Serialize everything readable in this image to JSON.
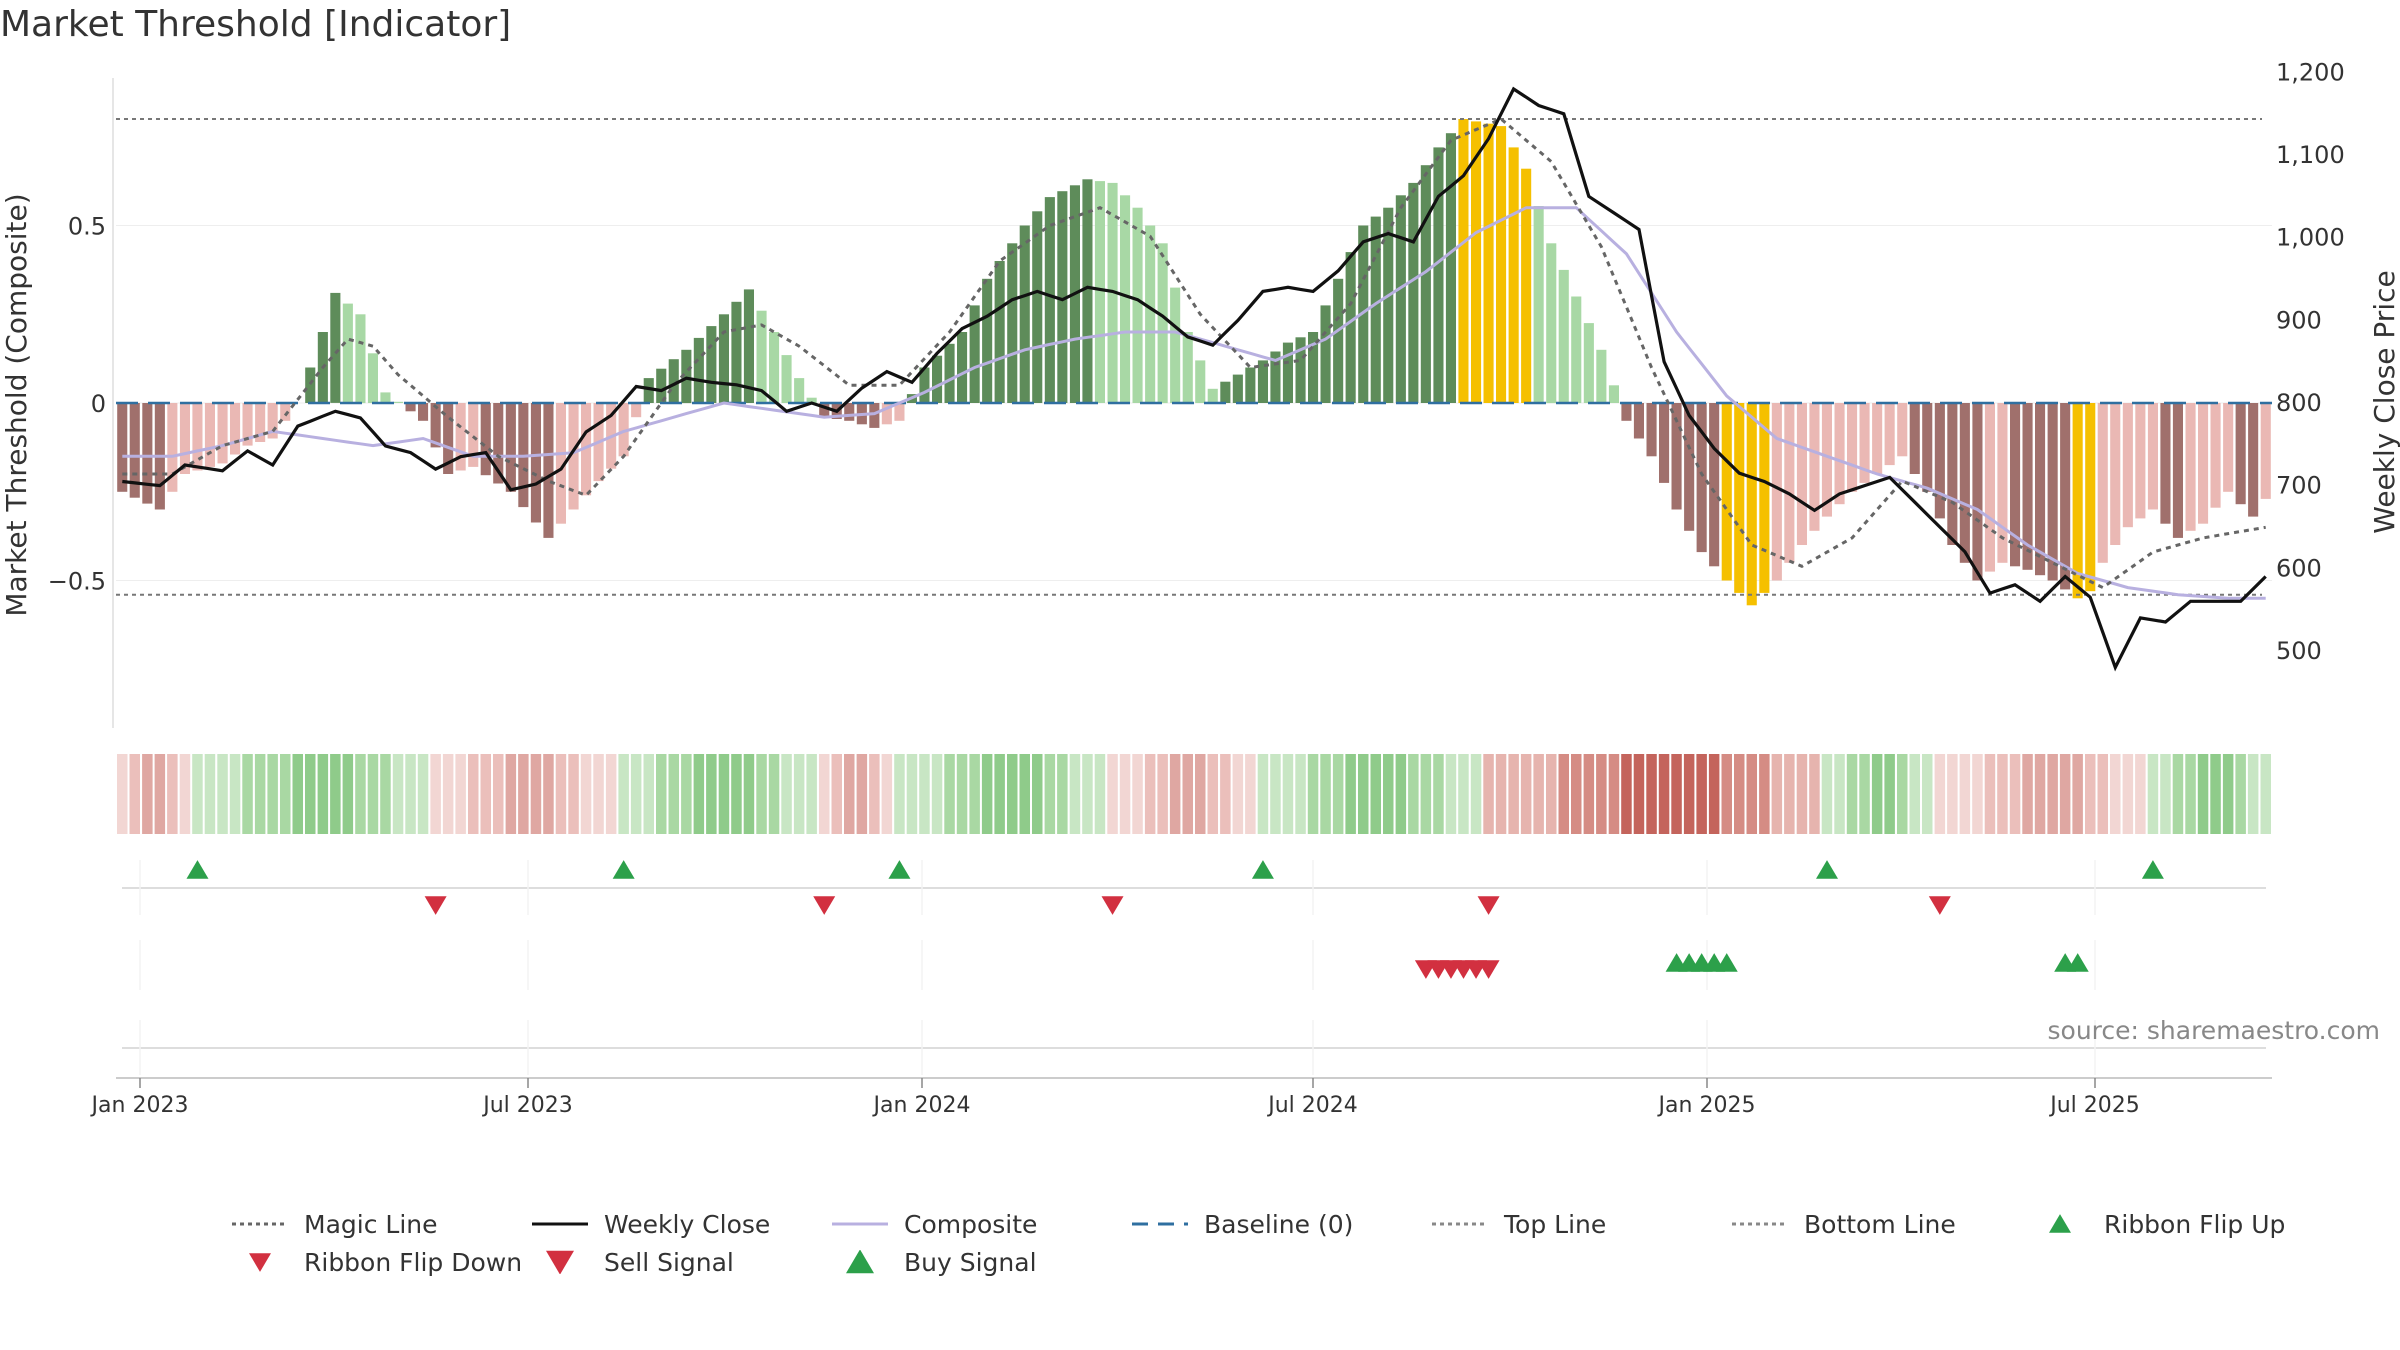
{
  "title": "Market Threshold [Indicator]",
  "source": "source: sharemaestro.com",
  "colors": {
    "dark_green": "#5e8c5a",
    "light_green": "#a8d8a5",
    "dark_red": "#a0706c",
    "light_red": "#eab8b4",
    "gold": "#f5c000",
    "composite": "#b8b0e0",
    "baseline": "#2f6fa0",
    "buy": "#2ca04a",
    "sell": "#d23040"
  },
  "chart_data": {
    "type": "bar",
    "title": "Market Threshold [Indicator]",
    "ylabel_left": "Market Threshold (Composite)",
    "ylabel_right": "Weekly Close Price",
    "left_ticks": [
      "0.5",
      "0",
      "−0.5"
    ],
    "right_ticks": [
      "1,200",
      "1,100",
      "1,000",
      "900",
      "800",
      "700",
      "600",
      "500"
    ],
    "x_ticks": [
      "Jan 2023",
      "Jul 2023",
      "Jan 2024",
      "Jul 2024",
      "Jan 2025",
      "Jul 2025"
    ],
    "ylim_left": [
      -0.9,
      0.92
    ],
    "ylim_right": [
      450,
      1225
    ],
    "top_line": 0.8,
    "bottom_line": -0.54,
    "series": [
      {
        "name": "Magic Line",
        "type": "line",
        "style": "dotted"
      },
      {
        "name": "Weekly Close",
        "type": "line",
        "style": "solid"
      },
      {
        "name": "Composite",
        "type": "line",
        "style": "solid"
      },
      {
        "name": "Baseline (0)",
        "type": "line",
        "style": "dashed"
      },
      {
        "name": "Top Line",
        "type": "line",
        "style": "dotted"
      },
      {
        "name": "Bottom Line",
        "type": "line",
        "style": "dotted"
      },
      {
        "name": "Ribbon Flip Up",
        "type": "marker"
      },
      {
        "name": "Ribbon Flip Down",
        "type": "marker"
      },
      {
        "name": "Sell Signal",
        "type": "marker"
      },
      {
        "name": "Buy Signal",
        "type": "marker"
      }
    ],
    "keypoints": [
      [
        0,
        -0.25
      ],
      [
        3,
        -0.3
      ],
      [
        5,
        -0.2
      ],
      [
        8,
        -0.17
      ],
      [
        10,
        -0.12
      ],
      [
        12,
        -0.1
      ],
      [
        14,
        0
      ],
      [
        16,
        0.2
      ],
      [
        17,
        0.31
      ],
      [
        19,
        0.25
      ],
      [
        21,
        0.03
      ],
      [
        24,
        -0.05
      ],
      [
        26,
        -0.2
      ],
      [
        28,
        -0.18
      ],
      [
        31,
        -0.25
      ],
      [
        34,
        -0.38
      ],
      [
        36,
        -0.3
      ],
      [
        38,
        -0.22
      ],
      [
        40,
        -0.15
      ],
      [
        42,
        0.07
      ],
      [
        45,
        0.15
      ],
      [
        48,
        0.25
      ],
      [
        50,
        0.32
      ],
      [
        52,
        0.2
      ],
      [
        54,
        0.07
      ],
      [
        56,
        -0.04
      ],
      [
        58,
        -0.05
      ],
      [
        60,
        -0.07
      ],
      [
        62,
        -0.05
      ],
      [
        64,
        0.1
      ],
      [
        67,
        0.2
      ],
      [
        69,
        0.35
      ],
      [
        72,
        0.5
      ],
      [
        74,
        0.58
      ],
      [
        77,
        0.63
      ],
      [
        79,
        0.62
      ],
      [
        81,
        0.55
      ],
      [
        83,
        0.45
      ],
      [
        85,
        0.2
      ],
      [
        87,
        0.04
      ],
      [
        89,
        0.08
      ],
      [
        91,
        0.12
      ],
      [
        93,
        0.17
      ],
      [
        95,
        0.2
      ],
      [
        97,
        0.35
      ],
      [
        99,
        0.5
      ],
      [
        101,
        0.55
      ],
      [
        103,
        0.62
      ],
      [
        105,
        0.72
      ],
      [
        107,
        0.8
      ],
      [
        110,
        0.78
      ],
      [
        112,
        0.66
      ],
      [
        114,
        0.45
      ],
      [
        116,
        0.3
      ],
      [
        118,
        0.15
      ],
      [
        120,
        -0.05
      ],
      [
        122,
        -0.15
      ],
      [
        124,
        -0.3
      ],
      [
        126,
        -0.42
      ],
      [
        128,
        -0.5
      ],
      [
        130,
        -0.57
      ],
      [
        132,
        -0.5
      ],
      [
        134,
        -0.4
      ],
      [
        136,
        -0.32
      ],
      [
        138,
        -0.25
      ],
      [
        140,
        -0.2
      ],
      [
        142,
        -0.15
      ],
      [
        144,
        -0.25
      ],
      [
        146,
        -0.4
      ],
      [
        148,
        -0.5
      ],
      [
        150,
        -0.45
      ],
      [
        152,
        -0.47
      ],
      [
        154,
        -0.5
      ],
      [
        156,
        -0.55
      ],
      [
        157,
        -0.53
      ],
      [
        158,
        -0.45
      ],
      [
        160,
        -0.35
      ],
      [
        162,
        -0.3
      ],
      [
        164,
        -0.38
      ],
      [
        166,
        -0.34
      ],
      [
        168,
        -0.25
      ],
      [
        170,
        -0.32
      ],
      [
        171,
        -0.27
      ]
    ],
    "gold_ranges": [
      [
        107,
        112
      ],
      [
        128,
        131
      ],
      [
        156,
        157
      ]
    ],
    "weekly_close_keypoints": [
      [
        0,
        705
      ],
      [
        3,
        700
      ],
      [
        5,
        725
      ],
      [
        8,
        718
      ],
      [
        10,
        742
      ],
      [
        12,
        725
      ],
      [
        14,
        772
      ],
      [
        17,
        790
      ],
      [
        19,
        782
      ],
      [
        21,
        748
      ],
      [
        23,
        740
      ],
      [
        25,
        720
      ],
      [
        27,
        735
      ],
      [
        29,
        740
      ],
      [
        31,
        695
      ],
      [
        33,
        702
      ],
      [
        35,
        720
      ],
      [
        37,
        765
      ],
      [
        39,
        785
      ],
      [
        41,
        820
      ],
      [
        43,
        815
      ],
      [
        45,
        830
      ],
      [
        47,
        825
      ],
      [
        49,
        822
      ],
      [
        51,
        815
      ],
      [
        53,
        790
      ],
      [
        55,
        800
      ],
      [
        57,
        790
      ],
      [
        59,
        818
      ],
      [
        61,
        838
      ],
      [
        63,
        825
      ],
      [
        65,
        860
      ],
      [
        67,
        890
      ],
      [
        69,
        905
      ],
      [
        71,
        925
      ],
      [
        73,
        935
      ],
      [
        75,
        925
      ],
      [
        77,
        940
      ],
      [
        79,
        935
      ],
      [
        81,
        925
      ],
      [
        83,
        905
      ],
      [
        85,
        880
      ],
      [
        87,
        870
      ],
      [
        89,
        900
      ],
      [
        91,
        935
      ],
      [
        93,
        940
      ],
      [
        95,
        935
      ],
      [
        97,
        960
      ],
      [
        99,
        995
      ],
      [
        101,
        1005
      ],
      [
        103,
        995
      ],
      [
        105,
        1050
      ],
      [
        107,
        1075
      ],
      [
        109,
        1120
      ],
      [
        111,
        1180
      ],
      [
        113,
        1160
      ],
      [
        115,
        1150
      ],
      [
        117,
        1050
      ],
      [
        119,
        1030
      ],
      [
        121,
        1010
      ],
      [
        123,
        850
      ],
      [
        125,
        785
      ],
      [
        127,
        745
      ],
      [
        129,
        715
      ],
      [
        131,
        705
      ],
      [
        133,
        690
      ],
      [
        135,
        670
      ],
      [
        137,
        690
      ],
      [
        139,
        700
      ],
      [
        141,
        710
      ],
      [
        143,
        680
      ],
      [
        145,
        650
      ],
      [
        147,
        620
      ],
      [
        149,
        570
      ],
      [
        151,
        580
      ],
      [
        153,
        560
      ],
      [
        155,
        590
      ],
      [
        157,
        565
      ],
      [
        159,
        480
      ],
      [
        161,
        540
      ],
      [
        163,
        535
      ],
      [
        165,
        560
      ],
      [
        167,
        560
      ],
      [
        169,
        560
      ],
      [
        171,
        590
      ]
    ],
    "magic_keypoints": [
      [
        0,
        -0.2
      ],
      [
        4,
        -0.2
      ],
      [
        8,
        -0.12
      ],
      [
        12,
        -0.08
      ],
      [
        16,
        0.1
      ],
      [
        18,
        0.18
      ],
      [
        20,
        0.16
      ],
      [
        22,
        0.08
      ],
      [
        26,
        -0.04
      ],
      [
        30,
        -0.15
      ],
      [
        34,
        -0.22
      ],
      [
        37,
        -0.26
      ],
      [
        40,
        -0.15
      ],
      [
        44,
        0.05
      ],
      [
        48,
        0.2
      ],
      [
        51,
        0.22
      ],
      [
        54,
        0.16
      ],
      [
        58,
        0.05
      ],
      [
        62,
        0.05
      ],
      [
        66,
        0.2
      ],
      [
        70,
        0.4
      ],
      [
        74,
        0.5
      ],
      [
        78,
        0.55
      ],
      [
        82,
        0.47
      ],
      [
        86,
        0.25
      ],
      [
        90,
        0.1
      ],
      [
        94,
        0.12
      ],
      [
        98,
        0.28
      ],
      [
        102,
        0.55
      ],
      [
        106,
        0.74
      ],
      [
        110,
        0.8
      ],
      [
        114,
        0.68
      ],
      [
        118,
        0.44
      ],
      [
        122,
        0.1
      ],
      [
        126,
        -0.2
      ],
      [
        130,
        -0.4
      ],
      [
        134,
        -0.46
      ],
      [
        138,
        -0.38
      ],
      [
        142,
        -0.22
      ],
      [
        146,
        -0.28
      ],
      [
        150,
        -0.38
      ],
      [
        154,
        -0.45
      ],
      [
        158,
        -0.52
      ],
      [
        162,
        -0.42
      ],
      [
        166,
        -0.38
      ],
      [
        171,
        -0.35
      ]
    ],
    "composite_keypoints": [
      [
        0,
        -0.15
      ],
      [
        4,
        -0.15
      ],
      [
        8,
        -0.12
      ],
      [
        12,
        -0.08
      ],
      [
        16,
        -0.1
      ],
      [
        20,
        -0.12
      ],
      [
        24,
        -0.1
      ],
      [
        28,
        -0.15
      ],
      [
        32,
        -0.15
      ],
      [
        36,
        -0.14
      ],
      [
        40,
        -0.08
      ],
      [
        44,
        -0.04
      ],
      [
        48,
        0.0
      ],
      [
        52,
        -0.02
      ],
      [
        56,
        -0.04
      ],
      [
        60,
        -0.03
      ],
      [
        64,
        0.03
      ],
      [
        68,
        0.1
      ],
      [
        72,
        0.15
      ],
      [
        76,
        0.18
      ],
      [
        80,
        0.2
      ],
      [
        84,
        0.2
      ],
      [
        88,
        0.16
      ],
      [
        92,
        0.12
      ],
      [
        96,
        0.18
      ],
      [
        100,
        0.28
      ],
      [
        104,
        0.37
      ],
      [
        108,
        0.48
      ],
      [
        112,
        0.55
      ],
      [
        116,
        0.55
      ],
      [
        120,
        0.42
      ],
      [
        124,
        0.2
      ],
      [
        128,
        0.02
      ],
      [
        132,
        -0.1
      ],
      [
        136,
        -0.15
      ],
      [
        140,
        -0.2
      ],
      [
        144,
        -0.24
      ],
      [
        148,
        -0.3
      ],
      [
        152,
        -0.4
      ],
      [
        156,
        -0.48
      ],
      [
        160,
        -0.52
      ],
      [
        164,
        -0.54
      ],
      [
        168,
        -0.55
      ],
      [
        171,
        -0.55
      ]
    ],
    "ribbon_flip_up_weeks": [
      6,
      40,
      62,
      91,
      136,
      162
    ],
    "ribbon_flip_down_weeks": [
      25,
      56,
      79,
      109,
      145
    ],
    "sell_signal_weeks": [
      104,
      105,
      106,
      107,
      108,
      109
    ],
    "buy_signal_weeks": [
      124,
      125,
      126,
      127,
      128,
      155,
      156
    ],
    "ribbon_segments": [
      {
        "from": 0,
        "to": 6,
        "state": "light_red"
      },
      {
        "from": 6,
        "to": 25,
        "state": "light_green"
      },
      {
        "from": 25,
        "to": 40,
        "state": "light_red"
      },
      {
        "from": 40,
        "to": 56,
        "state": "light_green"
      },
      {
        "from": 56,
        "to": 62,
        "state": "light_red"
      },
      {
        "from": 62,
        "to": 79,
        "state": "light_green"
      },
      {
        "from": 79,
        "to": 91,
        "state": "light_red"
      },
      {
        "from": 91,
        "to": 109,
        "state": "light_green"
      },
      {
        "from": 109,
        "to": 136,
        "state": "dark_red"
      },
      {
        "from": 136,
        "to": 145,
        "state": "light_green"
      },
      {
        "from": 145,
        "to": 162,
        "state": "light_red"
      },
      {
        "from": 162,
        "to": 172,
        "state": "light_green"
      }
    ]
  }
}
